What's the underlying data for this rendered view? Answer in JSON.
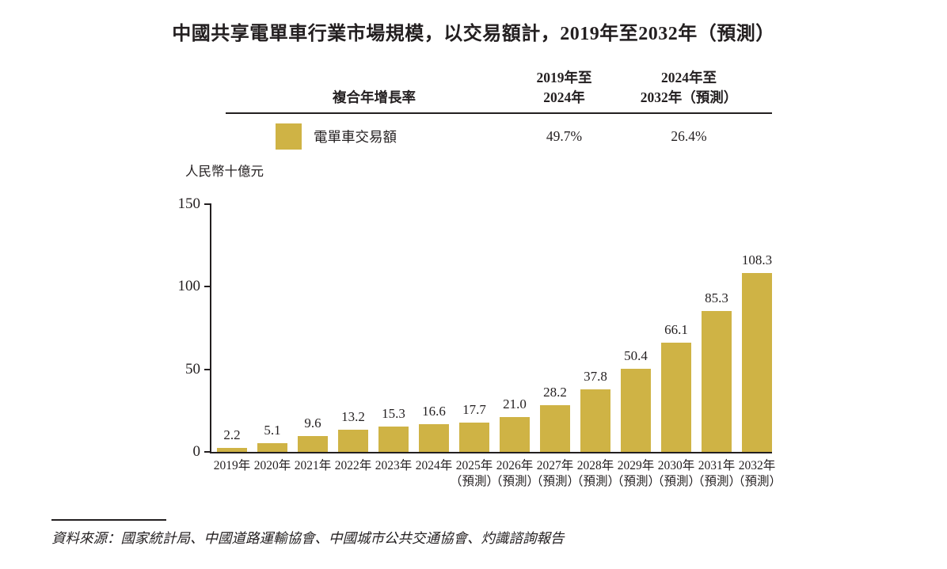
{
  "title": "中國共享電單車行業市場規模，以交易額計，2019年至2032年（預測）",
  "colors": {
    "bar": "#CFB345",
    "text": "#231f20"
  },
  "table": {
    "col1_header": "複合年增長率",
    "col2_header": "2019年至\n2024年",
    "col3_header": "2024年至\n2032年（預測）",
    "legend_label": "電單車交易額",
    "cagr_2019_2024": "49.7%",
    "cagr_2024_2032": "26.4%"
  },
  "chart_data": {
    "type": "bar",
    "title": "中國共享電單車行業市場規模，以交易額計，2019年至2032年（預測）",
    "ylabel": "人民幣十億元",
    "xlabel": "",
    "ylim": [
      0,
      150
    ],
    "y_ticks": [
      0,
      50,
      100,
      150
    ],
    "grid": false,
    "legend_position": "top-table",
    "series_name": "電單車交易額",
    "bar_color": "#CFB345",
    "categories": [
      "2019年",
      "2020年",
      "2021年",
      "2022年",
      "2023年",
      "2024年",
      "2025年",
      "2026年",
      "2027年",
      "2028年",
      "2029年",
      "2030年",
      "2031年",
      "2032年"
    ],
    "category_line2": [
      "",
      "",
      "",
      "",
      "",
      "",
      "（預測）",
      "（預測）",
      "（預測）",
      "（預測）",
      "（預測）",
      "（預測）",
      "（預測）",
      "（預測）"
    ],
    "values": [
      2.2,
      5.1,
      9.6,
      13.2,
      15.3,
      16.6,
      17.7,
      21.0,
      28.2,
      37.8,
      50.4,
      66.1,
      85.3,
      108.3
    ],
    "value_labels": [
      "2.2",
      "5.1",
      "9.6",
      "13.2",
      "15.3",
      "16.6",
      "17.7",
      "21.0",
      "28.2",
      "37.8",
      "50.4",
      "66.1",
      "85.3",
      "108.3"
    ]
  },
  "source": "資料來源：國家統計局、中國道路運輸協會、中國城市公共交通協會、灼識諮詢報告"
}
